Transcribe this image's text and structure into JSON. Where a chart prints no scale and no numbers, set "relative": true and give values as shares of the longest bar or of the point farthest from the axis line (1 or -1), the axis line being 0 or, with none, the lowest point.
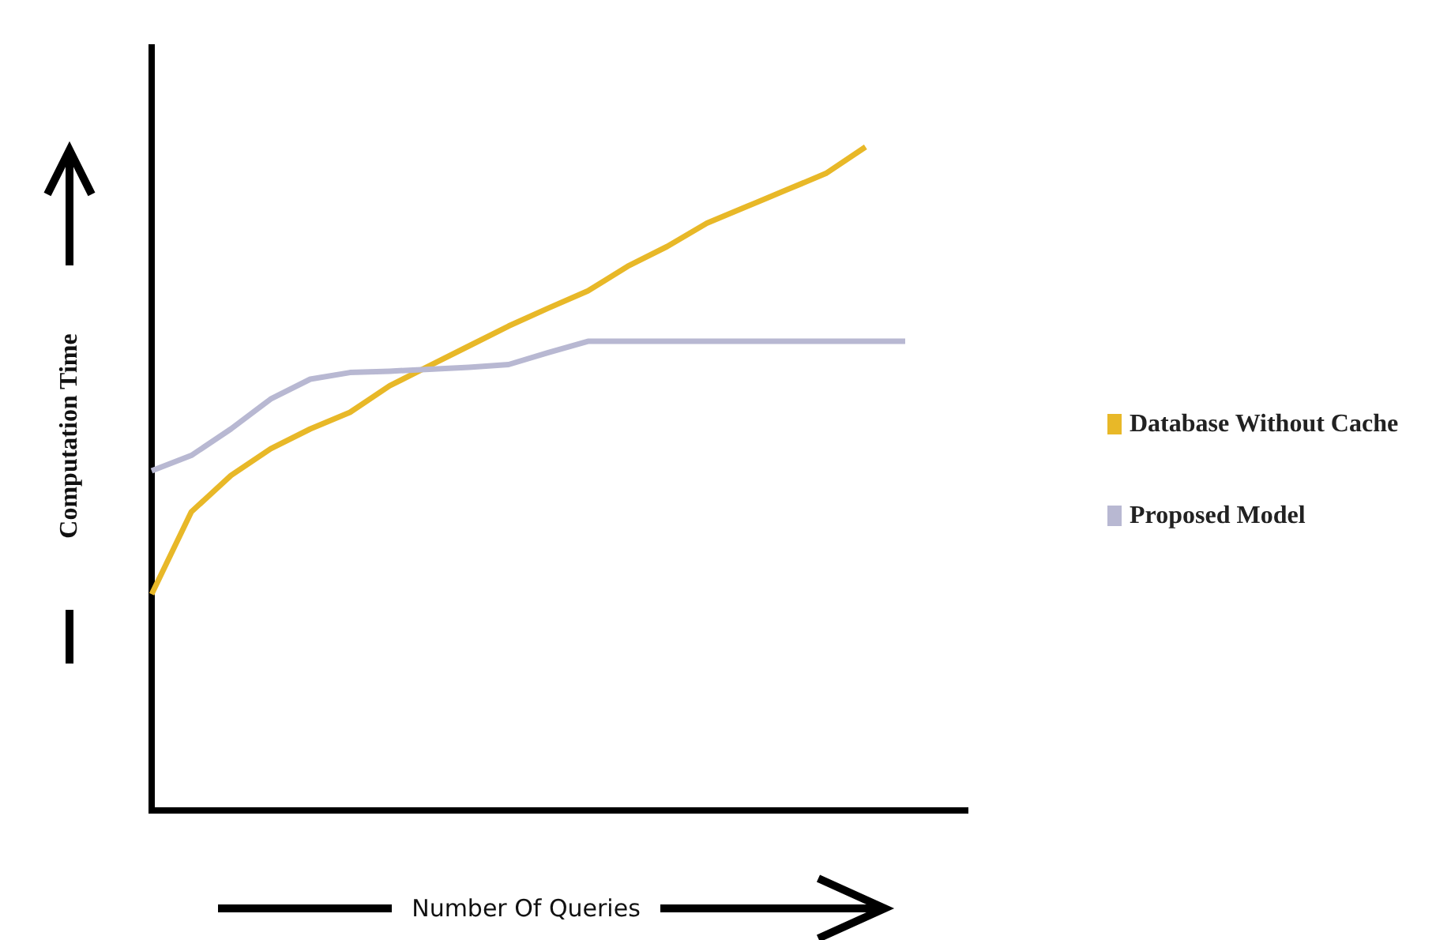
{
  "chart_data": {
    "type": "line",
    "relative": true,
    "xlabel": "Number Of Queries",
    "ylabel": "Computation Time",
    "categories": [
      null,
      null,
      null,
      null,
      null,
      null,
      null,
      null,
      null,
      null,
      null,
      null,
      null,
      null,
      null,
      null,
      null,
      null,
      null,
      null
    ],
    "series": [
      {
        "name": "Database Without Cache",
        "color": "#e8b828",
        "values": [
          0.326,
          0.45,
          0.505,
          0.545,
          0.575,
          0.6,
          0.64,
          0.67,
          0.7,
          0.73,
          0.757,
          0.783,
          0.82,
          0.85,
          0.885,
          0.91,
          0.935,
          0.96,
          1.0,
          null
        ]
      },
      {
        "name": "Proposed Model",
        "color": "#b8b8d2",
        "values": [
          0.512,
          0.535,
          0.575,
          0.62,
          0.65,
          0.66,
          0.662,
          0.665,
          0.668,
          0.672,
          0.69,
          0.707,
          0.707,
          0.707,
          0.707,
          0.707,
          0.707,
          0.707,
          0.707,
          0.707
        ]
      }
    ],
    "legend": "right",
    "grid": false,
    "marker": "none"
  }
}
